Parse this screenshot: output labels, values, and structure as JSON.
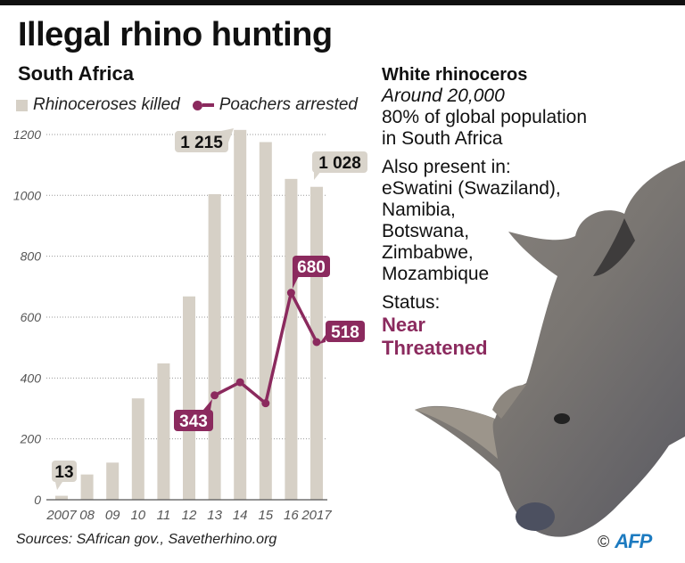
{
  "header": {
    "title": "Illegal rhino hunting",
    "subtitle": "South Africa"
  },
  "legend": {
    "bars_label": "Rhinoceroses killed",
    "line_label": "Poachers arrested"
  },
  "info": {
    "heading": "White rhinoceros",
    "population": "Around 20,000",
    "share_line1": "80% of global population",
    "share_line2": "in South Africa",
    "present_label": "Also present in:",
    "countries": [
      "eSwatini (Swaziland),",
      "Namibia,",
      "Botswana,",
      "Zimbabwe,",
      "Mozambique"
    ],
    "status_label": "Status:",
    "status_line1": "Near",
    "status_line2": "Threatened"
  },
  "footer": {
    "sources": "Sources: SAfrican gov., Savetherhino.org",
    "copyright": "©",
    "agency": "AFP"
  },
  "colors": {
    "bar": "#d6d0c6",
    "line": "#8b2a5e",
    "bar_label_bg": "#d9d4cb",
    "status": "#8b2a5e",
    "agency": "#1d7bc0"
  },
  "chart_data": {
    "type": "bar",
    "title": "Illegal rhino hunting",
    "subtitle": "South Africa",
    "xlabel": "",
    "ylabel": "",
    "ylim": [
      0,
      1200
    ],
    "yticks": [
      0,
      200,
      400,
      600,
      800,
      1000,
      1200
    ],
    "grid": true,
    "legend_position": "top-left",
    "categories": [
      "2007",
      "08",
      "09",
      "10",
      "11",
      "12",
      "13",
      "14",
      "15",
      "16",
      "2017"
    ],
    "series": [
      {
        "name": "Rhinoceroses killed",
        "type": "bar",
        "values": [
          13,
          83,
          122,
          333,
          448,
          668,
          1004,
          1215,
          1175,
          1054,
          1028
        ]
      },
      {
        "name": "Poachers arrested",
        "type": "line",
        "values": [
          null,
          null,
          null,
          null,
          null,
          null,
          343,
          386,
          317,
          680,
          518
        ]
      }
    ],
    "annotations": [
      {
        "series": "Rhinoceroses killed",
        "category": "2007",
        "label": "13"
      },
      {
        "series": "Rhinoceroses killed",
        "category": "14",
        "label": "1 215"
      },
      {
        "series": "Rhinoceroses killed",
        "category": "2017",
        "label": "1 028"
      },
      {
        "series": "Poachers arrested",
        "category": "13",
        "label": "343"
      },
      {
        "series": "Poachers arrested",
        "category": "16",
        "label": "680"
      },
      {
        "series": "Poachers arrested",
        "category": "2017",
        "label": "518"
      }
    ]
  }
}
